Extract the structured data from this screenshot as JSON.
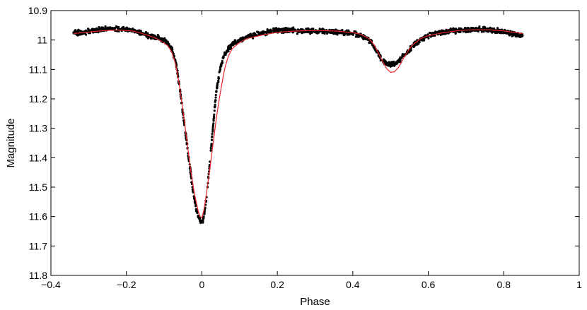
{
  "chart_data": {
    "type": "scatter",
    "title": "",
    "xlabel": "Phase",
    "ylabel": "Magnitude",
    "xlim": [
      -0.4,
      1.0
    ],
    "ylim": [
      11.8,
      10.9
    ],
    "y_inverted": true,
    "grid": false,
    "legend": "none",
    "x_ticks": [
      -0.4,
      -0.2,
      0,
      0.2,
      0.4,
      0.6,
      0.8,
      1
    ],
    "x_tick_labels": [
      "−0.4",
      "−0.2",
      "0",
      "0.2",
      "0.4",
      "0.6",
      "0.8",
      "1"
    ],
    "y_ticks": [
      10.9,
      11,
      11.1,
      11.2,
      11.3,
      11.4,
      11.5,
      11.6,
      11.7,
      11.8
    ],
    "y_tick_labels": [
      "10.9",
      "11",
      "11.1",
      "11.2",
      "11.3",
      "11.4",
      "11.5",
      "11.6",
      "11.7",
      "11.8"
    ],
    "colors": {
      "observations": "#000000",
      "model": "#e8262b"
    },
    "series": [
      {
        "kind": "points",
        "x_range": [
          -0.34,
          0.85
        ],
        "x": [
          -0.34,
          -0.32,
          -0.3,
          -0.28,
          -0.26,
          -0.24,
          -0.22,
          -0.2,
          -0.18,
          -0.16,
          -0.14,
          -0.12,
          -0.1,
          -0.09,
          -0.08,
          -0.07,
          -0.06,
          -0.05,
          -0.04,
          -0.035,
          -0.03,
          -0.025,
          -0.02,
          -0.015,
          -0.01,
          -0.005,
          0,
          0.005,
          0.01,
          0.015,
          0.02,
          0.025,
          0.03,
          0.035,
          0.04,
          0.05,
          0.06,
          0.07,
          0.08,
          0.09,
          0.1,
          0.12,
          0.14,
          0.16,
          0.18,
          0.2,
          0.22,
          0.24,
          0.26,
          0.28,
          0.3,
          0.32,
          0.34,
          0.36,
          0.38,
          0.4,
          0.42,
          0.44,
          0.45,
          0.46,
          0.47,
          0.48,
          0.49,
          0.5,
          0.51,
          0.52,
          0.53,
          0.54,
          0.55,
          0.56,
          0.58,
          0.6,
          0.62,
          0.64,
          0.66,
          0.68,
          0.7,
          0.72,
          0.74,
          0.76,
          0.78,
          0.8,
          0.82,
          0.85
        ],
        "y": [
          10.975,
          10.975,
          10.97,
          10.967,
          10.963,
          10.96,
          10.962,
          10.965,
          10.968,
          10.975,
          10.985,
          10.992,
          11.0,
          11.01,
          11.03,
          11.07,
          11.15,
          11.25,
          11.35,
          11.4,
          11.45,
          11.5,
          11.54,
          11.575,
          11.6,
          11.612,
          11.618,
          11.6,
          11.56,
          11.5,
          11.43,
          11.36,
          11.29,
          11.22,
          11.16,
          11.09,
          11.05,
          11.03,
          11.015,
          11.008,
          11.002,
          10.99,
          10.982,
          10.976,
          10.97,
          10.966,
          10.966,
          10.967,
          10.968,
          10.968,
          10.97,
          10.97,
          10.972,
          10.973,
          10.975,
          10.978,
          10.985,
          10.995,
          11.01,
          11.03,
          11.05,
          11.07,
          11.08,
          11.083,
          11.08,
          11.075,
          11.06,
          11.048,
          11.035,
          11.02,
          11.0,
          10.985,
          10.978,
          10.974,
          10.97,
          10.967,
          10.966,
          10.965,
          10.964,
          10.966,
          10.969,
          10.972,
          10.977,
          10.985
        ]
      },
      {
        "kind": "curve",
        "x": [
          -0.34,
          -0.3,
          -0.26,
          -0.22,
          -0.18,
          -0.14,
          -0.12,
          -0.1,
          -0.09,
          -0.08,
          -0.07,
          -0.06,
          -0.05,
          -0.04,
          -0.03,
          -0.02,
          -0.01,
          -0.005,
          0,
          0.005,
          0.01,
          0.02,
          0.03,
          0.04,
          0.05,
          0.06,
          0.07,
          0.08,
          0.1,
          0.12,
          0.16,
          0.2,
          0.24,
          0.28,
          0.32,
          0.36,
          0.4,
          0.42,
          0.44,
          0.45,
          0.46,
          0.47,
          0.48,
          0.49,
          0.5,
          0.51,
          0.52,
          0.53,
          0.54,
          0.55,
          0.56,
          0.58,
          0.6,
          0.64,
          0.68,
          0.72,
          0.76,
          0.8,
          0.85
        ],
        "y": [
          10.978,
          10.973,
          10.968,
          10.966,
          10.97,
          10.985,
          10.995,
          11.01,
          11.02,
          11.04,
          11.08,
          11.15,
          11.24,
          11.34,
          11.44,
          11.52,
          11.58,
          11.6,
          11.605,
          11.58,
          11.54,
          11.45,
          11.35,
          11.25,
          11.17,
          11.1,
          11.055,
          11.03,
          11.008,
          10.995,
          10.983,
          10.974,
          10.97,
          10.968,
          10.968,
          10.97,
          10.975,
          10.98,
          10.993,
          11.005,
          11.025,
          11.05,
          11.075,
          11.098,
          11.11,
          11.108,
          11.095,
          11.072,
          11.05,
          11.03,
          11.015,
          10.995,
          10.985,
          10.975,
          10.968,
          10.965,
          10.965,
          10.969,
          10.978
        ]
      }
    ]
  }
}
